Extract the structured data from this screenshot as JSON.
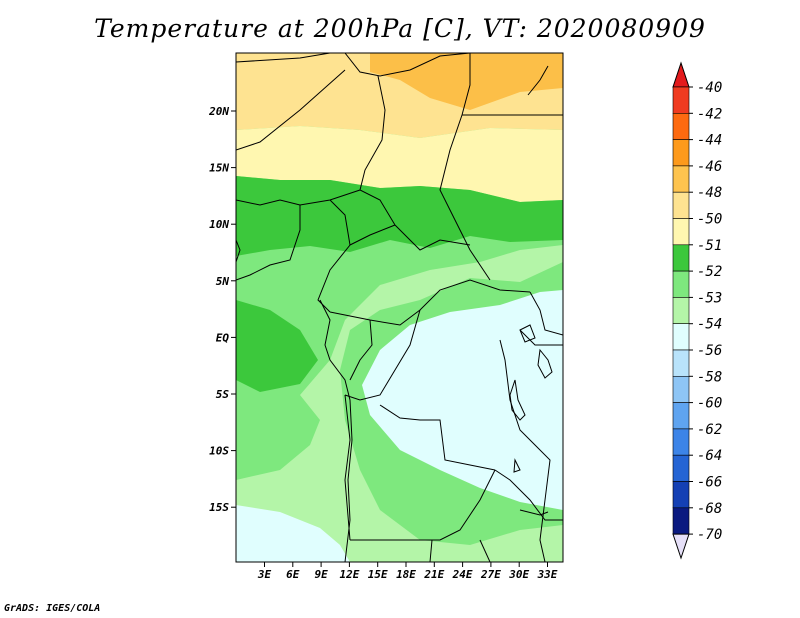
{
  "title": "Temperature at 200hPa [C], VT: 2020080909",
  "credit": "GrADS: IGES/COLA",
  "map": {
    "lon_ticks": [
      "3E",
      "6E",
      "9E",
      "12E",
      "15E",
      "18E",
      "21E",
      "24E",
      "27E",
      "30E",
      "33E"
    ],
    "lat_ticks": [
      "20N",
      "15N",
      "10N",
      "5N",
      "EQ",
      "5S",
      "10S",
      "15S"
    ]
  },
  "colorbar": {
    "levels": [
      {
        "label": "-40",
        "color": "#e31a1c"
      },
      {
        "label": "-42",
        "color": "#f03b20"
      },
      {
        "label": "-44",
        "color": "#fd6a10"
      },
      {
        "label": "-46",
        "color": "#fd9a1c"
      },
      {
        "label": "-48",
        "color": "#fec44f"
      },
      {
        "label": "-50",
        "color": "#fee391"
      },
      {
        "label": "-51",
        "color": "#fff7b0"
      },
      {
        "label": "-52",
        "color": "#3cc83c"
      },
      {
        "label": "-53",
        "color": "#7ee87e"
      },
      {
        "label": "-54",
        "color": "#b4f5a8"
      },
      {
        "label": "-56",
        "color": "#e0fefe"
      },
      {
        "label": "-58",
        "color": "#b9e3fb"
      },
      {
        "label": "-60",
        "color": "#8ec5f5"
      },
      {
        "label": "-62",
        "color": "#5fa4f0"
      },
      {
        "label": "-64",
        "color": "#3c84e8"
      },
      {
        "label": "-66",
        "color": "#2464d4"
      },
      {
        "label": "-68",
        "color": "#1440b4"
      },
      {
        "label": "-70",
        "color": "#0a1a80"
      }
    ],
    "low_color": "#e6e0f8"
  },
  "field_colors": {
    "orange": "#fcbf48",
    "yellow": "#fee391",
    "paleyellow": "#fff7b0",
    "green": "#3cc83c",
    "midgreen": "#7ee87e",
    "lightgreen": "#b4f5a8",
    "cyan": "#e0fefe"
  }
}
